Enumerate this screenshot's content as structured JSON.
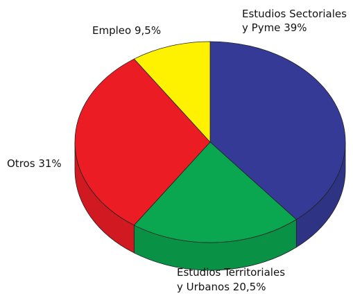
{
  "chart_data": {
    "type": "pie3d",
    "categories": [
      "Estudios Sectoriales\ny Pyme",
      "Estudios Territoriales\ny Urbanos",
      "Otros",
      "Empleo"
    ],
    "values": [
      39,
      20.5,
      31,
      9.5
    ],
    "value_labels": [
      "39%",
      "20,5%",
      "31%",
      "9,5%"
    ],
    "colors": [
      "#343a96",
      "#0aa650",
      "#ec1c24",
      "#fff200"
    ]
  }
}
